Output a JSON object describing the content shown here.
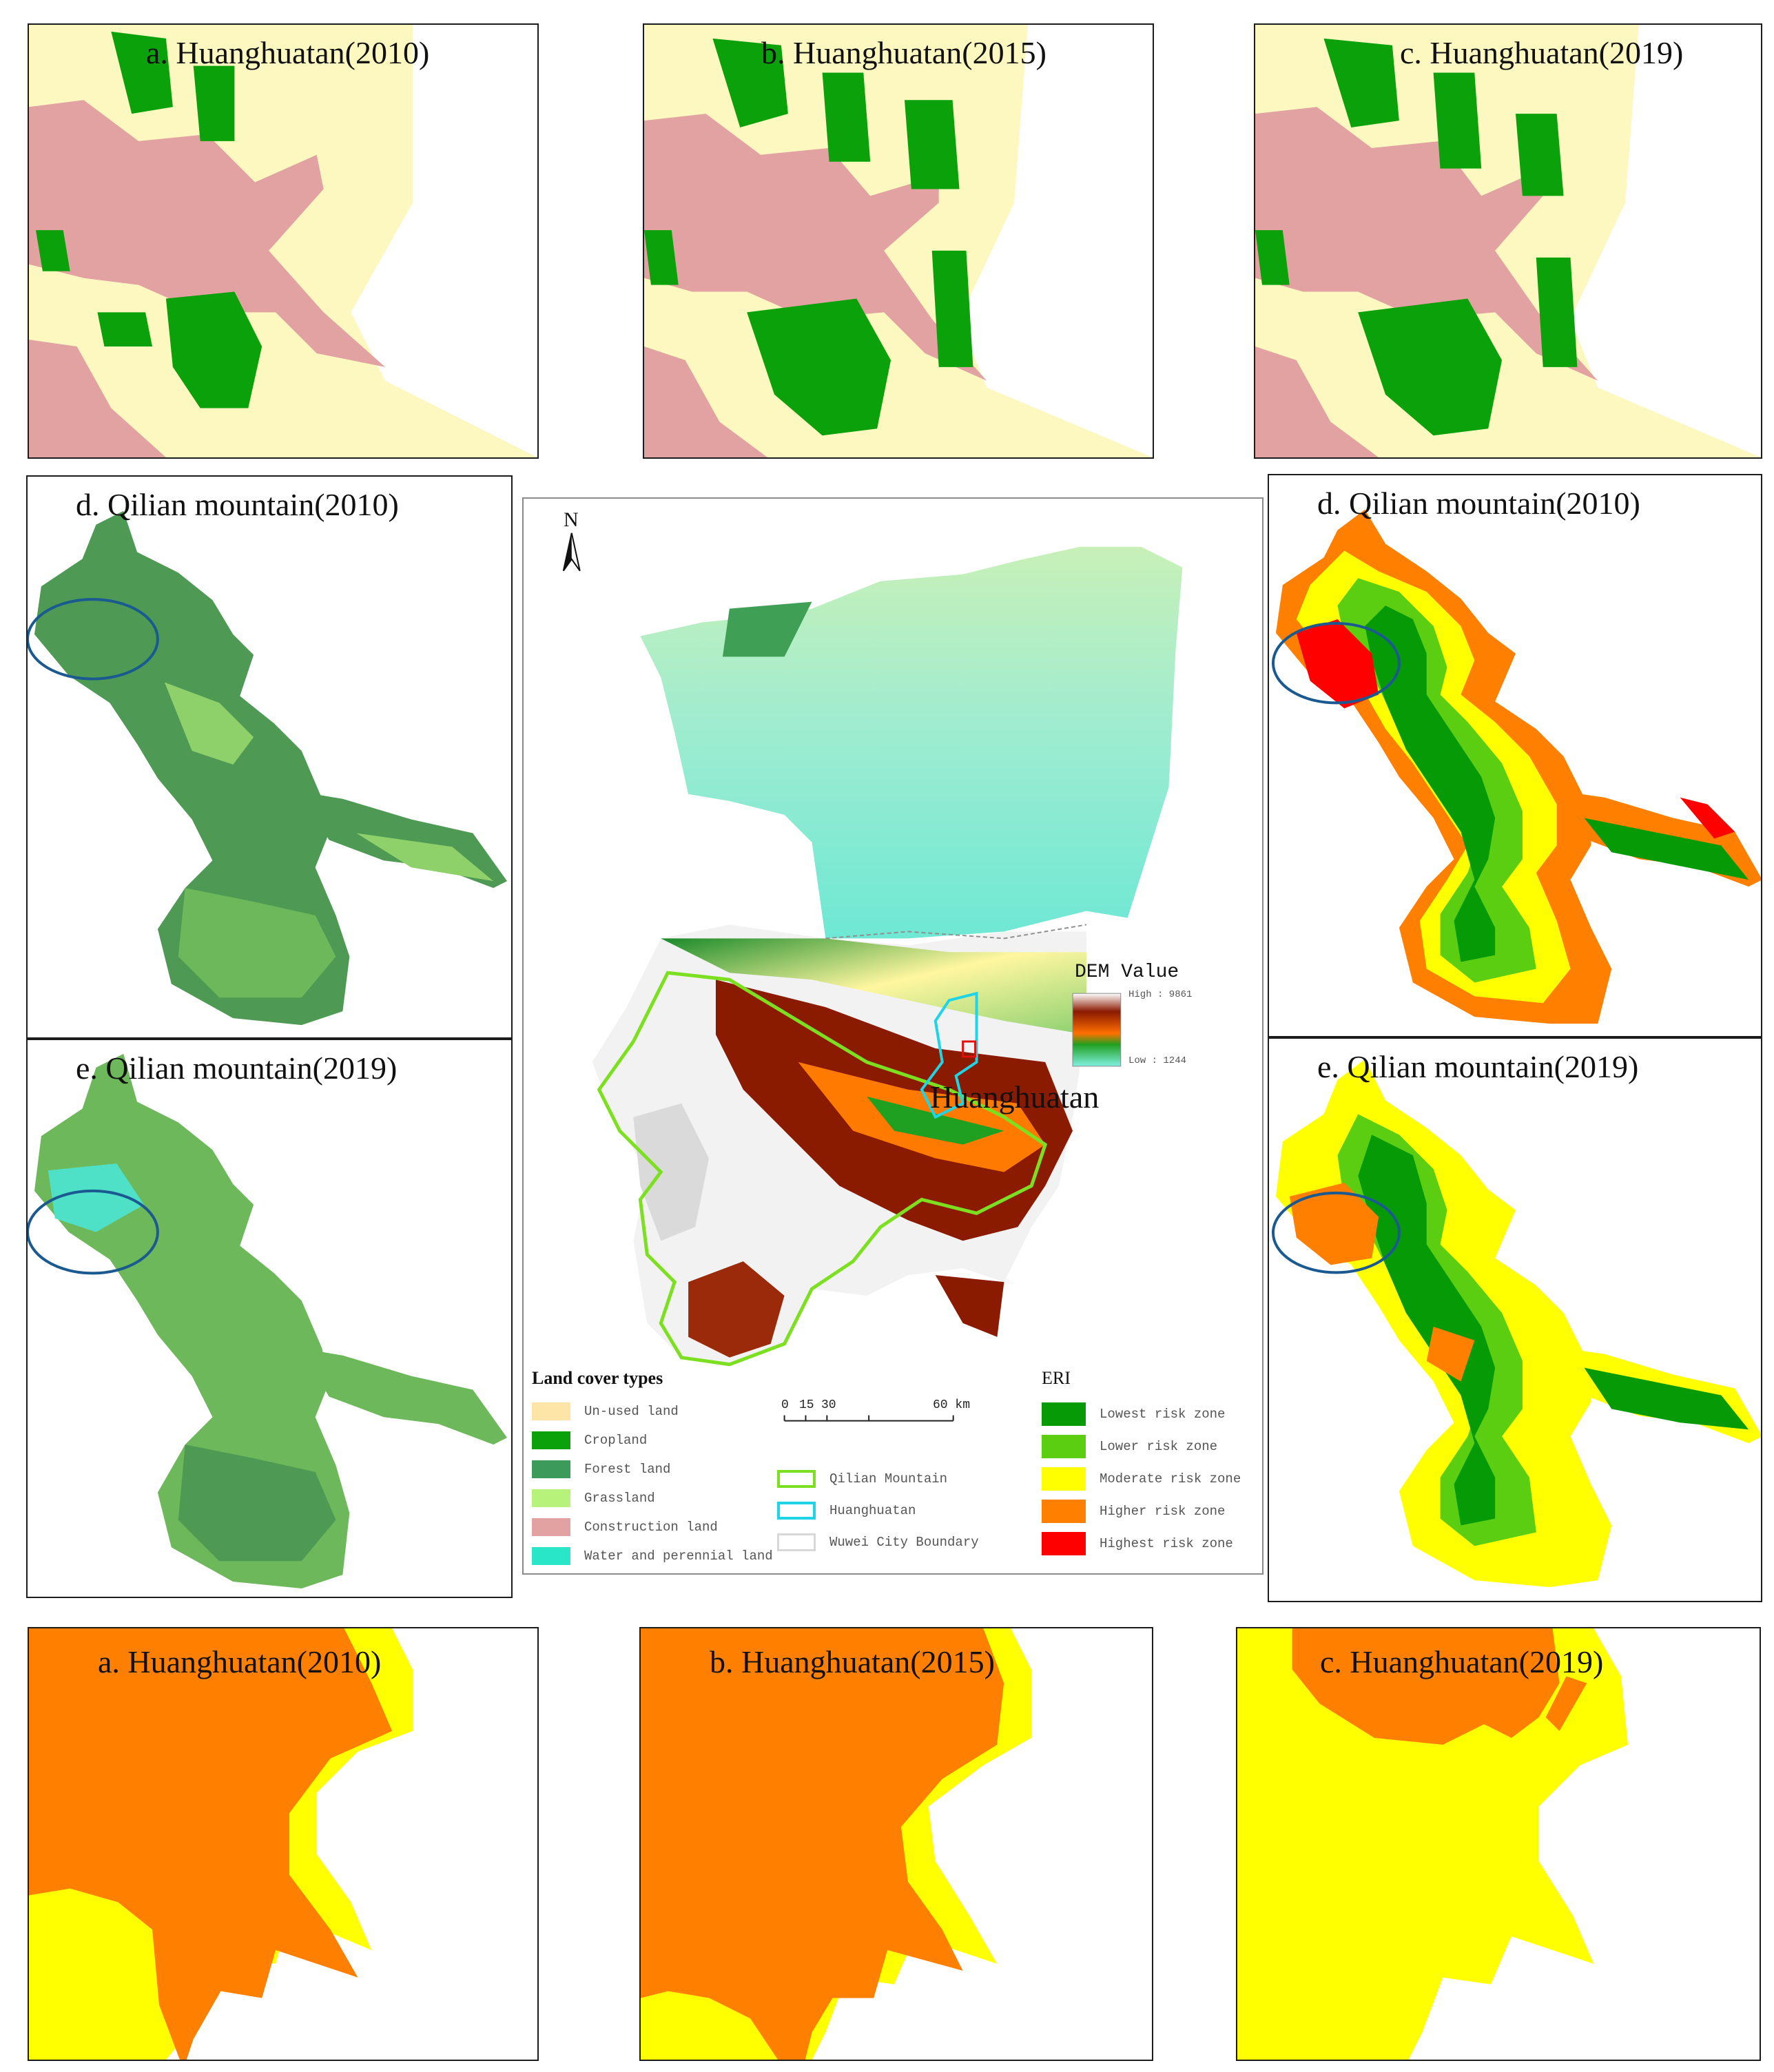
{
  "panels": {
    "lc_a": {
      "title": "a. Huanghuatan(2010)"
    },
    "lc_b": {
      "title": "b. Huanghuatan(2015)"
    },
    "lc_c": {
      "title": "c. Huanghuatan(2019)"
    },
    "lc_d": {
      "title": "d. Qilian mountain(2010)"
    },
    "lc_e": {
      "title": "e. Qilian mountain(2019)"
    },
    "eri_d": {
      "title": "d. Qilian mountain(2010)"
    },
    "eri_e": {
      "title": "e. Qilian mountain(2019)"
    },
    "eri_a": {
      "title": "a. Huanghuatan(2010)"
    },
    "eri_b": {
      "title": "b. Huanghuatan(2015)"
    },
    "eri_c": {
      "title": "c. Huanghuatan(2019)"
    }
  },
  "center_map": {
    "north_label": "N",
    "place_label": "Huanghuatan",
    "dem": {
      "title": "DEM Value",
      "high": "High : 9861",
      "low": "Low : 1244"
    },
    "scale_bar": {
      "labels": [
        "0",
        "15",
        "30",
        "60 km"
      ]
    },
    "land_cover": {
      "title": "Land cover types",
      "items": [
        {
          "label": "Un-used land",
          "color": "#fde5a8"
        },
        {
          "label": "Cropland",
          "color": "#0aa10a"
        },
        {
          "label": "Forest land",
          "color": "#3c9a5a"
        },
        {
          "label": "Grassland",
          "color": "#b7f27a"
        },
        {
          "label": "Construction land",
          "color": "#e2a2a2"
        },
        {
          "label": "Water and perennial land",
          "color": "#2ae6c8"
        }
      ]
    },
    "boundaries": [
      {
        "label": "Qilian Mountain",
        "color": "#7ce020"
      },
      {
        "label": "Huanghuatan",
        "color": "#1ed4e6"
      },
      {
        "label": "Wuwei City Boundary",
        "color": "#d8d8d8"
      }
    ],
    "eri": {
      "title": "ERI",
      "items": [
        {
          "label": "Lowest risk zone",
          "color": "#079a07"
        },
        {
          "label": "Lower risk zone",
          "color": "#5cce12"
        },
        {
          "label": "Moderate risk zone",
          "color": "#ffff00"
        },
        {
          "label": "Higher risk zone",
          "color": "#ff8000"
        },
        {
          "label": "Highest risk zone",
          "color": "#ff0000"
        }
      ]
    }
  }
}
